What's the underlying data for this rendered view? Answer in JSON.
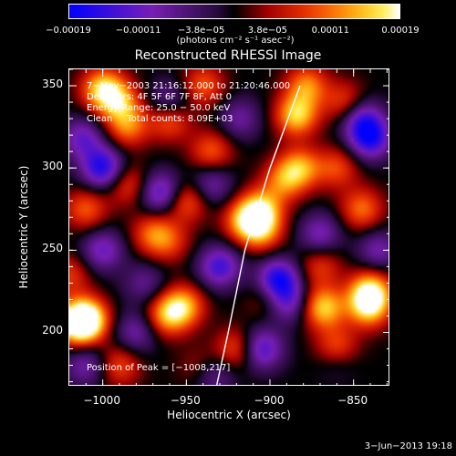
{
  "chart_data": {
    "type": "heatmap",
    "title": "Reconstructed RHESSI Image",
    "xlabel": "Heliocentric X (arcsec)",
    "ylabel": "Heliocentric Y (arcsec)",
    "xlim": [
      -1020,
      -828
    ],
    "ylim": [
      167,
      360
    ],
    "xticks": [
      "−1000",
      "−950",
      "−900",
      "−850"
    ],
    "xtick_values": [
      -1000,
      -950,
      -900,
      -850
    ],
    "yticks": [
      "350",
      "300",
      "250",
      "200"
    ],
    "ytick_values": [
      350,
      300,
      250,
      200
    ],
    "colorbar": {
      "ticks": [
        "−0.00019",
        "−0.00011",
        "−3.8e−05",
        "3.8e−05",
        "0.00011",
        "0.00019"
      ],
      "tick_values": [
        -0.00019,
        -0.00011,
        -3.8e-05,
        3.8e-05,
        0.00011,
        0.00019
      ],
      "range": [
        -0.00019,
        0.00019
      ],
      "colormap": "blue-purple-black-red-yellow-white",
      "unit_text": "(photons cm⁻² s⁻¹ asec⁻²)"
    },
    "annotations": {
      "time": "7−May−2003 21:16:12.000 to 21:20:46.000",
      "detectors": "Detectors: 4F 5F 6F 7F 8F, Att 0",
      "energy": "Energy Range: 25.0 − 50.0 keV",
      "clean": "Clean     Total counts: 8.09E+03",
      "peak": "Position of Peak = [−1008,217]"
    },
    "peak_position": [
      -1008,
      217
    ],
    "limb_arc": [
      [
        -932,
        167
      ],
      [
        -925,
        200
      ],
      [
        -915,
        250
      ],
      [
        -900,
        300
      ],
      [
        -882,
        350
      ]
    ],
    "blobs": [
      [
        -1010,
        208,
        1.0
      ],
      [
        -1015,
        205,
        0.8
      ],
      [
        -952,
        216,
        0.7
      ],
      [
        -962,
        210,
        0.6
      ],
      [
        -868,
        215,
        0.8
      ],
      [
        -860,
        190,
        0.7
      ],
      [
        -840,
        225,
        0.85
      ],
      [
        -841,
        215,
        0.7
      ],
      [
        -905,
        275,
        0.7
      ],
      [
        -915,
        268,
        0.65
      ],
      [
        -905,
        262,
        0.6
      ],
      [
        -882,
        300,
        0.65
      ],
      [
        -884,
        332,
        0.8
      ],
      [
        -878,
        350,
        0.6
      ],
      [
        -892,
        292,
        0.5
      ],
      [
        -1000,
        348,
        0.8
      ],
      [
        -990,
        340,
        0.6
      ],
      [
        -985,
        325,
        0.55
      ],
      [
        -960,
        330,
        0.6
      ],
      [
        -940,
        350,
        0.5
      ],
      [
        -950,
        280,
        0.55
      ],
      [
        -970,
        260,
        0.5
      ],
      [
        -1010,
        275,
        0.5
      ],
      [
        -985,
        290,
        0.45
      ],
      [
        -935,
        310,
        0.5
      ],
      [
        -920,
        190,
        0.5
      ],
      [
        -940,
        178,
        0.45
      ],
      [
        -845,
        275,
        0.55
      ],
      [
        -860,
        300,
        0.45
      ],
      [
        -870,
        240,
        0.4
      ],
      [
        -990,
        180,
        0.45
      ],
      [
        -960,
        255,
        0.35
      ],
      [
        -1020,
        235,
        0.4
      ],
      [
        -855,
        340,
        0.45
      ],
      [
        -900,
        220,
        0.35
      ],
      [
        -1000,
        300,
        -0.85
      ],
      [
        -1012,
        318,
        -0.55
      ],
      [
        -965,
        285,
        -0.7
      ],
      [
        -895,
        232,
        -0.9
      ],
      [
        -890,
        218,
        -0.6
      ],
      [
        -930,
        240,
        -0.7
      ],
      [
        -840,
        318,
        -0.8
      ],
      [
        -845,
        330,
        -0.6
      ],
      [
        -935,
        175,
        -0.6
      ],
      [
        -1000,
        250,
        -0.55
      ],
      [
        -960,
        340,
        -0.5
      ],
      [
        -905,
        190,
        -0.7
      ],
      [
        -1010,
        180,
        -0.45
      ],
      [
        -870,
        260,
        -0.5
      ],
      [
        -980,
        200,
        -0.45
      ],
      [
        -860,
        185,
        -0.4
      ],
      [
        -935,
        290,
        -0.45
      ],
      [
        -975,
        230,
        -0.35
      ],
      [
        -835,
        250,
        -0.45
      ],
      [
        -918,
        330,
        -0.4
      ]
    ]
  },
  "footer": {
    "date": "3−Jun−2013 19:18"
  }
}
